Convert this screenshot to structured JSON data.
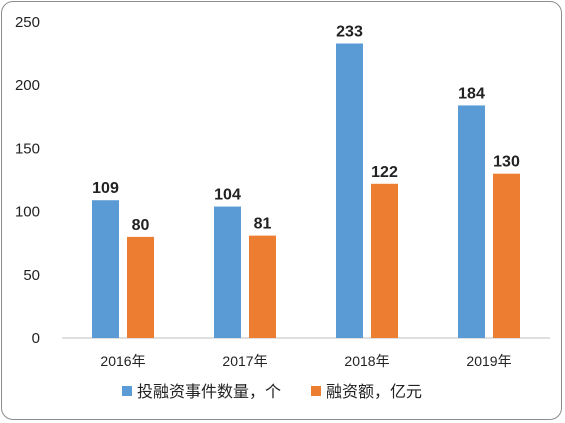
{
  "chart_data": {
    "type": "bar",
    "title": "",
    "xlabel": "",
    "ylabel": "",
    "categories": [
      "2016年",
      "2017年",
      "2018年",
      "2019年"
    ],
    "series": [
      {
        "name": "投融资事件数量，个",
        "values": [
          109,
          104,
          233,
          184
        ],
        "color": "#5b9bd5"
      },
      {
        "name": "融资额，亿元",
        "values": [
          80,
          81,
          122,
          130
        ],
        "color": "#ed7d31"
      }
    ],
    "ylim": [
      0,
      250
    ],
    "yticks": [
      0,
      50,
      100,
      150,
      200,
      250
    ],
    "grid": false,
    "legend": "bottom",
    "data_labels": true
  }
}
